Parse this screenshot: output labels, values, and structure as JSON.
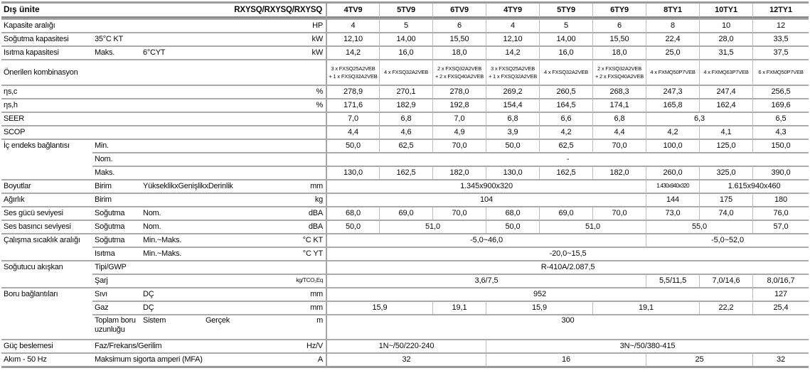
{
  "table": {
    "header": {
      "left_title": "Dış ünite",
      "left_models": "RXYSQ/RXYSQ/RXYSQ",
      "columns": [
        "4TV9",
        "5TV9",
        "6TV9",
        "4TY9",
        "5TY9",
        "6TY9",
        "8TY1",
        "10TY1",
        "12TY1"
      ]
    },
    "rows": [
      {
        "labels": [
          {
            "c": 0,
            "s": 4,
            "t": "Kapasite aralığı"
          }
        ],
        "unit": "HP",
        "cells": [
          {
            "t": "4"
          },
          {
            "t": "5"
          },
          {
            "t": "6"
          },
          {
            "t": "4"
          },
          {
            "t": "5"
          },
          {
            "t": "6"
          },
          {
            "t": "8"
          },
          {
            "t": "10"
          },
          {
            "t": "12"
          }
        ]
      },
      {
        "labels": [
          {
            "c": 0,
            "s": 1,
            "t": "Soğutma kapasitesi"
          },
          {
            "c": 1,
            "s": 3,
            "t": "35°C KT"
          }
        ],
        "unit": "kW",
        "cells": [
          {
            "t": "12,10"
          },
          {
            "t": "14,00"
          },
          {
            "t": "15,50"
          },
          {
            "t": "12,10"
          },
          {
            "t": "14,00"
          },
          {
            "t": "15,50"
          },
          {
            "t": "22,4"
          },
          {
            "t": "28,0"
          },
          {
            "t": "33,5"
          }
        ]
      },
      {
        "labels": [
          {
            "c": 0,
            "s": 1,
            "t": "Isıtma kapasitesi"
          },
          {
            "c": 1,
            "s": 1,
            "t": "Maks."
          },
          {
            "c": 2,
            "s": 2,
            "t": "6°CYT"
          }
        ],
        "unit": "kW",
        "cells": [
          {
            "t": "14,2"
          },
          {
            "t": "16,0"
          },
          {
            "t": "18,0"
          },
          {
            "t": "14,2"
          },
          {
            "t": "16,0"
          },
          {
            "t": "18,0"
          },
          {
            "t": "25,0"
          },
          {
            "t": "31,5"
          },
          {
            "t": "37,5"
          }
        ]
      },
      {
        "tall": 1,
        "labels": [
          {
            "c": 0,
            "s": 4,
            "t": "Önerilen kombinasyon"
          }
        ],
        "unit": "",
        "cells": [
          {
            "t": "3 x FXSQ25A2VEB\n+ 1 x FXSQ32A2VEB",
            "cls": "xs"
          },
          {
            "t": "4 x FXSQ32A2VEB",
            "cls": "xs"
          },
          {
            "t": "2 x FXSQ32A2VEB\n+ 2 x FXSQ40A2VEB",
            "cls": "xs"
          },
          {
            "t": "3 x FXSQ25A2VEB\n+ 1 x FXSQ32A2VEB",
            "cls": "xs"
          },
          {
            "t": "4 x FXSQ32A2VEB",
            "cls": "xs"
          },
          {
            "t": "2 x FXSQ32A2VEB\n+ 2 x FXSQ40A2VEB",
            "cls": "xs"
          },
          {
            "t": "4 x FXMQ50P7VEB",
            "cls": "xs"
          },
          {
            "t": "4 x FXMQ63P7VEB",
            "cls": "xs"
          },
          {
            "t": "6 x FXMQ50P7VEB",
            "cls": "xs"
          }
        ]
      },
      {
        "labels": [
          {
            "c": 0,
            "s": 4,
            "t": "ηs,c"
          }
        ],
        "unit": "%",
        "cells": [
          {
            "t": "278,9"
          },
          {
            "t": "270,1"
          },
          {
            "t": "278,0"
          },
          {
            "t": "269,2"
          },
          {
            "t": "260,5"
          },
          {
            "t": "268,3"
          },
          {
            "t": "247,3"
          },
          {
            "t": "247,4"
          },
          {
            "t": "256,5"
          }
        ]
      },
      {
        "labels": [
          {
            "c": 0,
            "s": 4,
            "t": "ηs,h"
          }
        ],
        "unit": "%",
        "cells": [
          {
            "t": "171,6"
          },
          {
            "t": "182,9"
          },
          {
            "t": "192,8"
          },
          {
            "t": "154,4"
          },
          {
            "t": "164,5"
          },
          {
            "t": "174,1"
          },
          {
            "t": "165,8"
          },
          {
            "t": "162,4"
          },
          {
            "t": "169,6"
          }
        ]
      },
      {
        "labels": [
          {
            "c": 0,
            "s": 4,
            "t": "SEER"
          }
        ],
        "unit": "",
        "cells": [
          {
            "t": "7,0"
          },
          {
            "t": "6,8"
          },
          {
            "t": "7,0"
          },
          {
            "t": "6,8"
          },
          {
            "t": "6,6"
          },
          {
            "t": "6,8"
          },
          {
            "t": "6,3",
            "s": 2
          },
          {
            "t": "6,5"
          }
        ]
      },
      {
        "labels": [
          {
            "c": 0,
            "s": 4,
            "t": "SCOP"
          }
        ],
        "unit": "",
        "cells": [
          {
            "t": "4,4"
          },
          {
            "t": "4,6"
          },
          {
            "t": "4,9"
          },
          {
            "t": "3,9"
          },
          {
            "t": "4,2"
          },
          {
            "t": "4,4"
          },
          {
            "t": "4,2"
          },
          {
            "t": "4,1"
          },
          {
            "t": "4,3"
          }
        ]
      },
      {
        "labels": [
          {
            "c": 0,
            "s": 1,
            "t": "İç endeks bağlantısı"
          },
          {
            "c": 1,
            "s": 3,
            "t": "Min."
          }
        ],
        "unit": "",
        "cells": [
          {
            "t": "50,0"
          },
          {
            "t": "62,5"
          },
          {
            "t": "70,0"
          },
          {
            "t": "50,0"
          },
          {
            "t": "62,5"
          },
          {
            "t": "70,0"
          },
          {
            "t": "100,0"
          },
          {
            "t": "125,0"
          },
          {
            "t": "150,0"
          }
        ]
      },
      {
        "cont": true,
        "labels": [
          {
            "c": 1,
            "s": 3,
            "t": "Nom."
          }
        ],
        "unit": "",
        "cells": [
          {
            "t": "-",
            "s": 9
          }
        ]
      },
      {
        "cont": true,
        "labels": [
          {
            "c": 1,
            "s": 3,
            "t": "Maks."
          }
        ],
        "unit": "",
        "cells": [
          {
            "t": "130,0"
          },
          {
            "t": "162,5"
          },
          {
            "t": "182,0"
          },
          {
            "t": "130,0"
          },
          {
            "t": "162,5"
          },
          {
            "t": "182,0"
          },
          {
            "t": "260,0"
          },
          {
            "t": "325,0"
          },
          {
            "t": "390,0"
          }
        ]
      },
      {
        "labels": [
          {
            "c": 0,
            "s": 1,
            "t": "Boyutlar"
          },
          {
            "c": 1,
            "s": 1,
            "t": "Birim"
          },
          {
            "c": 2,
            "s": 2,
            "t": "YükseklikxGenişlikxDerinlik"
          }
        ],
        "unit": "mm",
        "cells": [
          {
            "t": "1.345x900x320",
            "s": 6
          },
          {
            "t": "1.430x940x320",
            "cls": "sq"
          },
          {
            "t": "1.615x940x460",
            "s": 2
          }
        ]
      },
      {
        "labels": [
          {
            "c": 0,
            "s": 1,
            "t": "Ağırlık"
          },
          {
            "c": 1,
            "s": 3,
            "t": "Birim"
          }
        ],
        "unit": "kg",
        "cells": [
          {
            "t": "104",
            "s": 6
          },
          {
            "t": "144"
          },
          {
            "t": "175"
          },
          {
            "t": "180"
          }
        ]
      },
      {
        "labels": [
          {
            "c": 0,
            "s": 1,
            "t": "Ses gücü seviyesi"
          },
          {
            "c": 1,
            "s": 1,
            "t": "Soğutma"
          },
          {
            "c": 2,
            "s": 2,
            "t": "Nom."
          }
        ],
        "unit": "dBA",
        "cells": [
          {
            "t": "68,0"
          },
          {
            "t": "69,0"
          },
          {
            "t": "70,0"
          },
          {
            "t": "68,0"
          },
          {
            "t": "69,0"
          },
          {
            "t": "70,0"
          },
          {
            "t": "73,0"
          },
          {
            "t": "74,0"
          },
          {
            "t": "76,0"
          }
        ]
      },
      {
        "labels": [
          {
            "c": 0,
            "s": 1,
            "t": "Ses basıncı seviyesi"
          },
          {
            "c": 1,
            "s": 1,
            "t": "Soğutma"
          },
          {
            "c": 2,
            "s": 2,
            "t": "Nom."
          }
        ],
        "unit": "dBA",
        "cells": [
          {
            "t": "50,0"
          },
          {
            "t": "51,0",
            "s": 2
          },
          {
            "t": "50,0"
          },
          {
            "t": "51,0",
            "s": 2
          },
          {
            "t": "55,0",
            "s": 2
          },
          {
            "t": "57,0"
          }
        ]
      },
      {
        "labels": [
          {
            "c": 0,
            "s": 1,
            "t": "Çalışma sıcaklık aralığı"
          },
          {
            "c": 1,
            "s": 1,
            "t": "Soğutma"
          },
          {
            "c": 2,
            "s": 2,
            "t": "Min.~Maks."
          }
        ],
        "unit": "°C KT",
        "cells": [
          {
            "t": "-5,0~46,0",
            "s": 6
          },
          {
            "t": "-5,0~52,0",
            "s": 3
          }
        ]
      },
      {
        "cont": true,
        "labels": [
          {
            "c": 1,
            "s": 1,
            "t": "Isıtma"
          },
          {
            "c": 2,
            "s": 2,
            "t": "Min.~Maks."
          }
        ],
        "unit": "°C YT",
        "cells": [
          {
            "t": "-20,0~15,5",
            "s": 9
          }
        ]
      },
      {
        "labels": [
          {
            "c": 0,
            "s": 1,
            "t": "Soğutucu akışkan"
          },
          {
            "c": 1,
            "s": 3,
            "t": "Tipi/GWP"
          }
        ],
        "unit": "",
        "cells": [
          {
            "t": "R-410A/2.087,5",
            "s": 9
          }
        ]
      },
      {
        "cont": true,
        "labels": [
          {
            "c": 1,
            "s": 3,
            "t": "Şarj"
          }
        ],
        "unit": "kg/TCO₂Eq",
        "ucls": "us",
        "cells": [
          {
            "t": "3,6/7,5",
            "s": 6
          },
          {
            "t": "5,5/11,5"
          },
          {
            "t": "7,0/14,6"
          },
          {
            "t": "8,0/16,7"
          }
        ]
      },
      {
        "labels": [
          {
            "c": 0,
            "s": 1,
            "t": "Boru bağlantıları"
          },
          {
            "c": 1,
            "s": 1,
            "t": "Sıvı"
          },
          {
            "c": 2,
            "s": 2,
            "t": "DÇ"
          }
        ],
        "unit": "mm",
        "cells": [
          {
            "t": "952",
            "s": 8
          },
          {
            "t": "127"
          }
        ]
      },
      {
        "cont": true,
        "labels": [
          {
            "c": 1,
            "s": 1,
            "t": "Gaz"
          },
          {
            "c": 2,
            "s": 2,
            "t": "DÇ"
          }
        ],
        "unit": "mm",
        "cells": [
          {
            "t": "15,9",
            "s": 2
          },
          {
            "t": "19,1"
          },
          {
            "t": "15,9",
            "s": 2
          },
          {
            "t": "19,1",
            "s": 2
          },
          {
            "t": "22,2"
          },
          {
            "t": "25,4"
          }
        ]
      },
      {
        "cont": true,
        "tall": 2,
        "labels": [
          {
            "c": 1,
            "s": 1,
            "t": "Toplam boru uzunluğu"
          },
          {
            "c": 2,
            "s": 1,
            "t": "Sistem"
          },
          {
            "c": 3,
            "s": 1,
            "t": "Gerçek"
          }
        ],
        "unit": "m",
        "cells": [
          {
            "t": "300",
            "s": 9
          }
        ]
      },
      {
        "labels": [
          {
            "c": 0,
            "s": 1,
            "t": "Güç beslemesi"
          },
          {
            "c": 1,
            "s": 3,
            "t": "Faz/Frekans/Gerilim"
          }
        ],
        "unit": "Hz/V",
        "cells": [
          {
            "t": "1N~/50/220-240",
            "s": 3
          },
          {
            "t": "3N~/50/380-415",
            "s": 6
          }
        ]
      },
      {
        "labels": [
          {
            "c": 0,
            "s": 1,
            "t": "Akım - 50 Hz"
          },
          {
            "c": 1,
            "s": 3,
            "t": "Maksimum sigorta amperi (MFA)"
          }
        ],
        "unit": "A",
        "cells": [
          {
            "t": "32",
            "s": 3
          },
          {
            "t": "16",
            "s": 3
          },
          {
            "t": "25",
            "s": 2
          },
          {
            "t": "32"
          }
        ]
      }
    ]
  }
}
